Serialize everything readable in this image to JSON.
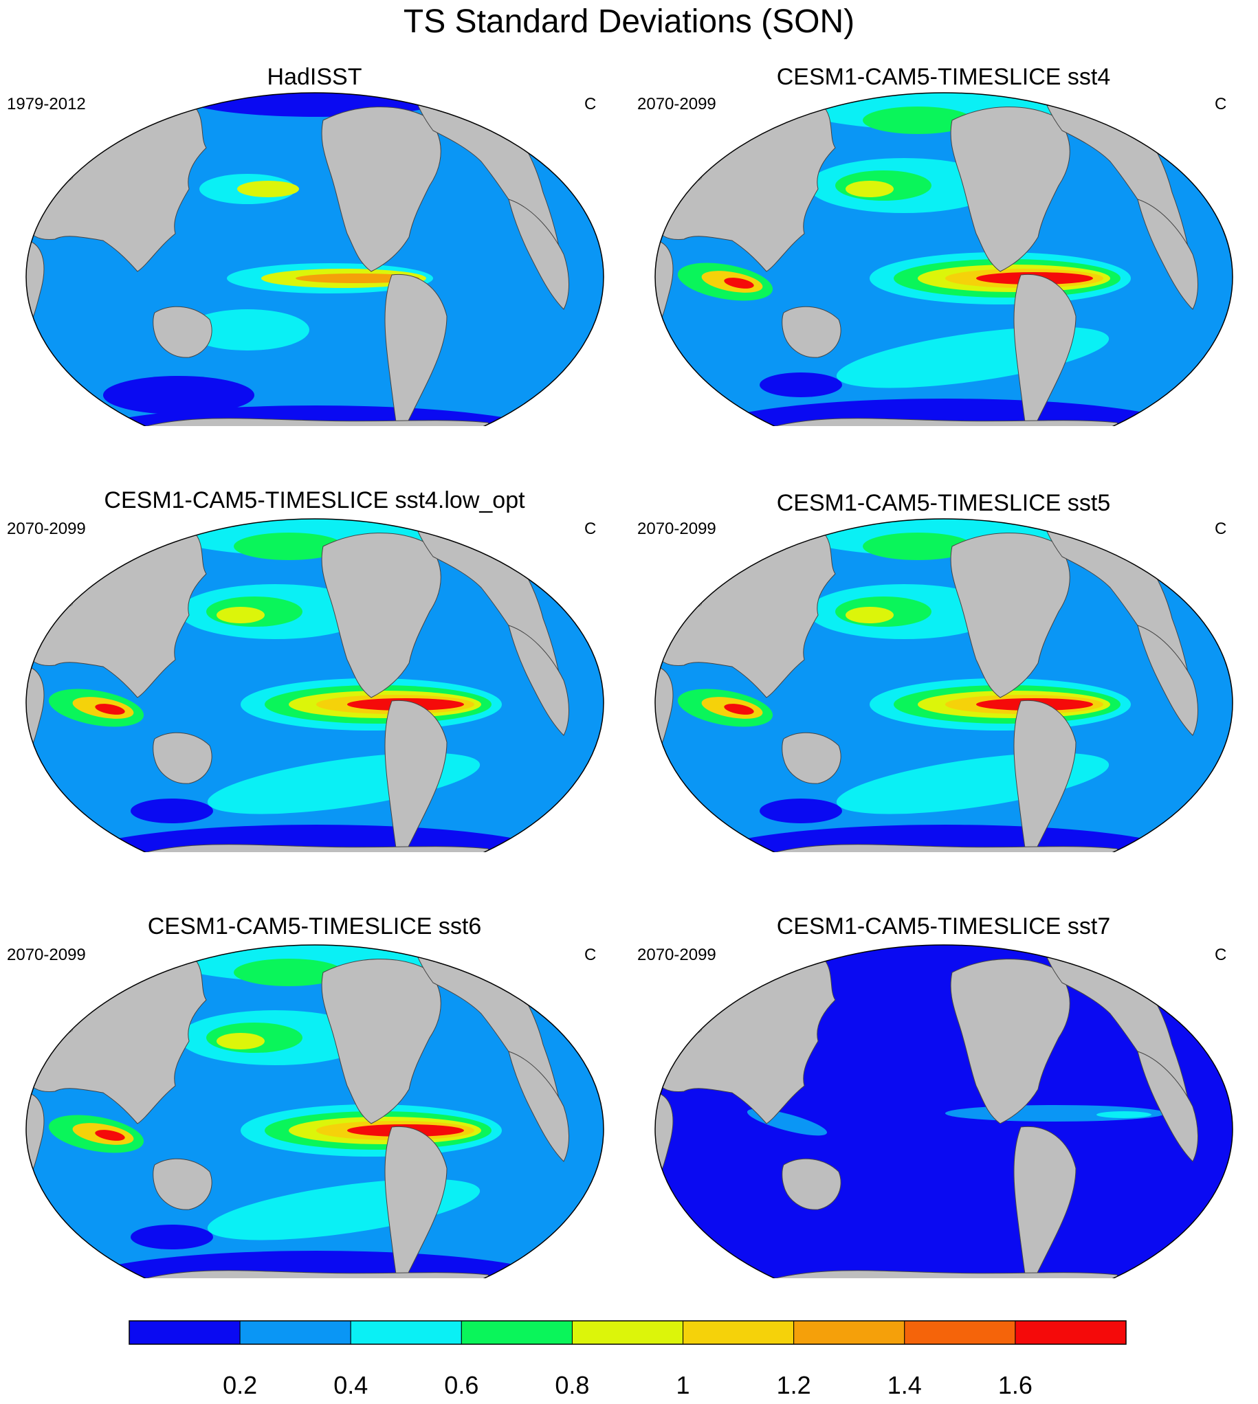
{
  "title": "TS Standard Deviations (SON)",
  "panels": [
    {
      "title": "HadISST",
      "left_label": "1979-2012",
      "right_label": "C",
      "pattern": "obs"
    },
    {
      "title": "CESM1-CAM5-TIMESLICE sst4",
      "left_label": "2070-2099",
      "right_label": "C",
      "pattern": "model"
    },
    {
      "title": "CESM1-CAM5-TIMESLICE sst4.low_opt",
      "left_label": "2070-2099",
      "right_label": "C",
      "pattern": "model"
    },
    {
      "title": "CESM1-CAM5-TIMESLICE sst5",
      "left_label": "2070-2099",
      "right_label": "C",
      "pattern": "model"
    },
    {
      "title": "CESM1-CAM5-TIMESLICE sst6",
      "left_label": "2070-2099",
      "right_label": "C",
      "pattern": "model"
    },
    {
      "title": "CESM1-CAM5-TIMESLICE sst7",
      "left_label": "2070-2099",
      "right_label": "C",
      "pattern": "low"
    }
  ],
  "colorbar": {
    "colors": [
      "#0a0af2",
      "#0a96f5",
      "#0af0f5",
      "#0af55a",
      "#dcf50a",
      "#f5d20a",
      "#f5a00a",
      "#f5640a",
      "#f50a0a"
    ],
    "labels": [
      "0.2",
      "0.4",
      "0.6",
      "0.8",
      "1",
      "1.2",
      "1.4",
      "1.6"
    ]
  },
  "colors": {
    "land": "#bebebe",
    "land_ice": "#ffffff"
  }
}
